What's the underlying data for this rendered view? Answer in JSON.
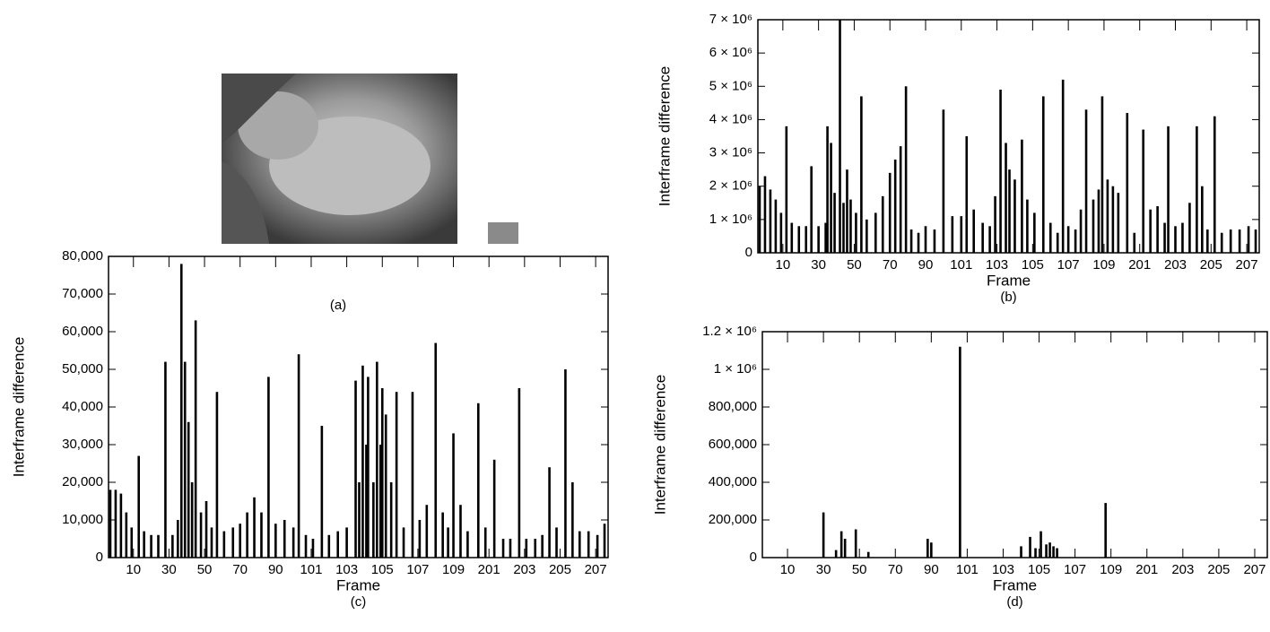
{
  "figure": {
    "image_caption": "(a)"
  },
  "chart_data": [
    {
      "type": "bar",
      "caption": "(b)",
      "xlabel": "Frame",
      "ylabel": "Interframe difference",
      "color": "#000000",
      "xlim": [
        -4,
        277
      ],
      "ylim": [
        0,
        7000000
      ],
      "xticks": [
        10,
        30,
        50,
        70,
        90,
        {
          "value": 110,
          "label": "101"
        },
        {
          "value": 130,
          "label": "103"
        },
        {
          "value": 150,
          "label": "105"
        },
        {
          "value": 170,
          "label": "107"
        },
        {
          "value": 190,
          "label": "109"
        },
        {
          "value": 210,
          "label": "201"
        },
        {
          "value": 230,
          "label": "203"
        },
        {
          "value": 250,
          "label": "205"
        },
        {
          "value": 270,
          "label": "207"
        }
      ],
      "yticks": [
        0,
        {
          "value": 1000000,
          "label": "1 × 10⁶"
        },
        {
          "value": 2000000,
          "label": "2 × 10⁶"
        },
        {
          "value": 3000000,
          "label": "3 × 10⁶"
        },
        {
          "value": 4000000,
          "label": "4 × 10⁶"
        },
        {
          "value": 5000000,
          "label": "5 × 10⁶"
        },
        {
          "value": 6000000,
          "label": "6 × 10⁶"
        },
        {
          "value": 7000000,
          "label": "7 × 10⁶"
        }
      ],
      "x": [
        -3,
        0,
        3,
        6,
        9,
        12,
        15,
        19,
        23,
        26,
        30,
        34,
        35,
        37,
        39,
        42,
        44,
        46,
        48,
        51,
        54,
        57,
        62,
        66,
        70,
        73,
        76,
        79,
        82,
        86,
        90,
        95,
        100,
        105,
        110,
        113,
        117,
        122,
        126,
        129,
        132,
        135,
        137,
        140,
        144,
        147,
        151,
        156,
        160,
        164,
        167,
        170,
        174,
        177,
        180,
        184,
        187,
        189,
        192,
        195,
        198,
        203,
        207,
        212,
        216,
        220,
        224,
        226,
        230,
        234,
        238,
        242,
        245,
        248,
        252,
        256,
        261,
        266,
        271,
        275
      ],
      "values": [
        2000000,
        2300000,
        1900000,
        1600000,
        1200000,
        3800000,
        900000,
        800000,
        800000,
        2600000,
        800000,
        900000,
        3800000,
        3300000,
        1800000,
        7000000,
        1500000,
        2500000,
        1600000,
        1200000,
        4700000,
        1000000,
        1200000,
        1700000,
        2400000,
        2800000,
        3200000,
        5000000,
        700000,
        600000,
        800000,
        700000,
        4300000,
        1100000,
        1100000,
        3500000,
        1300000,
        900000,
        800000,
        1700000,
        4900000,
        3300000,
        2500000,
        2200000,
        3400000,
        1600000,
        1200000,
        4700000,
        900000,
        600000,
        5200000,
        800000,
        700000,
        1300000,
        4300000,
        1600000,
        1900000,
        4700000,
        2200000,
        2000000,
        1800000,
        4200000,
        600000,
        3700000,
        1300000,
        1400000,
        900000,
        3800000,
        800000,
        900000,
        1500000,
        3800000,
        2000000,
        700000,
        4100000,
        600000,
        700000,
        700000,
        800000,
        700000
      ]
    },
    {
      "type": "bar",
      "caption": "(c)",
      "xlabel": "Frame",
      "ylabel": "Interframe difference",
      "color": "#000000",
      "xlim": [
        -4,
        277
      ],
      "ylim": [
        0,
        80000
      ],
      "xticks": [
        10,
        30,
        50,
        70,
        90,
        {
          "value": 110,
          "label": "101"
        },
        {
          "value": 130,
          "label": "103"
        },
        {
          "value": 150,
          "label": "105"
        },
        {
          "value": 170,
          "label": "107"
        },
        {
          "value": 190,
          "label": "109"
        },
        {
          "value": 210,
          "label": "201"
        },
        {
          "value": 230,
          "label": "203"
        },
        {
          "value": 250,
          "label": "205"
        },
        {
          "value": 270,
          "label": "207"
        }
      ],
      "yticks": [
        0,
        {
          "value": 10000,
          "label": "10,000"
        },
        {
          "value": 20000,
          "label": "20,000"
        },
        {
          "value": 30000,
          "label": "30,000"
        },
        {
          "value": 40000,
          "label": "40,000"
        },
        {
          "value": 50000,
          "label": "50,000"
        },
        {
          "value": 60000,
          "label": "60,000"
        },
        {
          "value": 70000,
          "label": "70,000"
        },
        {
          "value": 80000,
          "label": "80,000"
        }
      ],
      "x": [
        -3,
        0,
        3,
        6,
        9,
        13,
        16,
        20,
        24,
        28,
        32,
        35,
        37,
        39,
        41,
        43,
        45,
        48,
        51,
        54,
        57,
        61,
        66,
        70,
        74,
        78,
        82,
        86,
        90,
        95,
        100,
        103,
        107,
        111,
        116,
        120,
        125,
        130,
        135,
        137,
        139,
        141,
        142,
        145,
        147,
        149,
        150,
        152,
        155,
        158,
        162,
        167,
        171,
        175,
        180,
        184,
        187,
        190,
        194,
        198,
        204,
        208,
        213,
        218,
        222,
        227,
        231,
        236,
        240,
        244,
        248,
        253,
        257,
        261,
        266,
        271,
        275
      ],
      "values": [
        18000,
        18000,
        17000,
        12000,
        8000,
        27000,
        7000,
        6000,
        6000,
        52000,
        6000,
        10000,
        78000,
        52000,
        36000,
        20000,
        63000,
        12000,
        15000,
        8000,
        44000,
        7000,
        8000,
        9000,
        12000,
        16000,
        12000,
        48000,
        9000,
        10000,
        8000,
        54000,
        6000,
        5000,
        35000,
        6000,
        7000,
        8000,
        47000,
        20000,
        51000,
        30000,
        48000,
        20000,
        52000,
        30000,
        45000,
        38000,
        20000,
        44000,
        8000,
        44000,
        10000,
        14000,
        57000,
        12000,
        8000,
        33000,
        14000,
        7000,
        41000,
        8000,
        26000,
        5000,
        5000,
        45000,
        5000,
        5000,
        6000,
        24000,
        8000,
        50000,
        20000,
        7000,
        7000,
        6000,
        9000
      ]
    },
    {
      "type": "bar",
      "caption": "(d)",
      "xlabel": "Frame",
      "ylabel": "Interframe difference",
      "color": "#000000",
      "xlim": [
        -4,
        277
      ],
      "ylim": [
        0,
        1200000
      ],
      "xticks": [
        10,
        30,
        50,
        70,
        90,
        {
          "value": 110,
          "label": "101"
        },
        {
          "value": 130,
          "label": "103"
        },
        {
          "value": 150,
          "label": "105"
        },
        {
          "value": 170,
          "label": "107"
        },
        {
          "value": 190,
          "label": "109"
        },
        {
          "value": 210,
          "label": "201"
        },
        {
          "value": 230,
          "label": "203"
        },
        {
          "value": 250,
          "label": "205"
        },
        {
          "value": 270,
          "label": "207"
        }
      ],
      "yticks": [
        0,
        {
          "value": 200000,
          "label": "200,000"
        },
        {
          "value": 400000,
          "label": "400,000"
        },
        {
          "value": 600000,
          "label": "600,000"
        },
        {
          "value": 800000,
          "label": "800,000"
        },
        {
          "value": 1000000,
          "label": "1 × 10⁶"
        },
        {
          "value": 1200000,
          "label": "1.2 × 10⁶"
        }
      ],
      "x": [
        30,
        37,
        40,
        42,
        48,
        55,
        88,
        90,
        106,
        140,
        145,
        148,
        151,
        154,
        156,
        158,
        160,
        187
      ],
      "values": [
        240000,
        40000,
        140000,
        100000,
        150000,
        30000,
        100000,
        80000,
        1120000,
        60000,
        110000,
        50000,
        140000,
        70000,
        80000,
        60000,
        50000,
        290000
      ]
    }
  ]
}
